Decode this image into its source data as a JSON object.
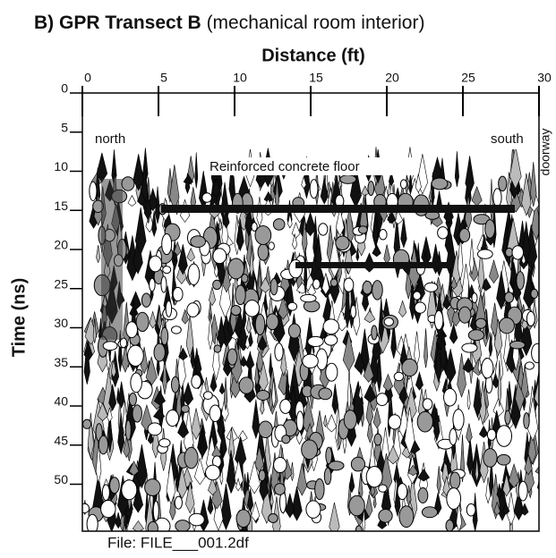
{
  "chart_data": {
    "type": "radargram",
    "title": "B) GPR Transect B",
    "subtitle": "(mechanical room interior)",
    "x_label": "Distance (ft)",
    "y_label": "Time (ns)",
    "xlim": [
      0,
      30
    ],
    "xticks": [
      0,
      5,
      10,
      15,
      20,
      25,
      30
    ],
    "ylim": [
      0,
      56
    ],
    "yticks": [
      0,
      5,
      10,
      15,
      20,
      25,
      30,
      35,
      40,
      45,
      50
    ],
    "annotations": [
      "north",
      "south",
      "doorway",
      "Reinforced concrete floor"
    ],
    "footer": "File: FILE___001.2df"
  }
}
